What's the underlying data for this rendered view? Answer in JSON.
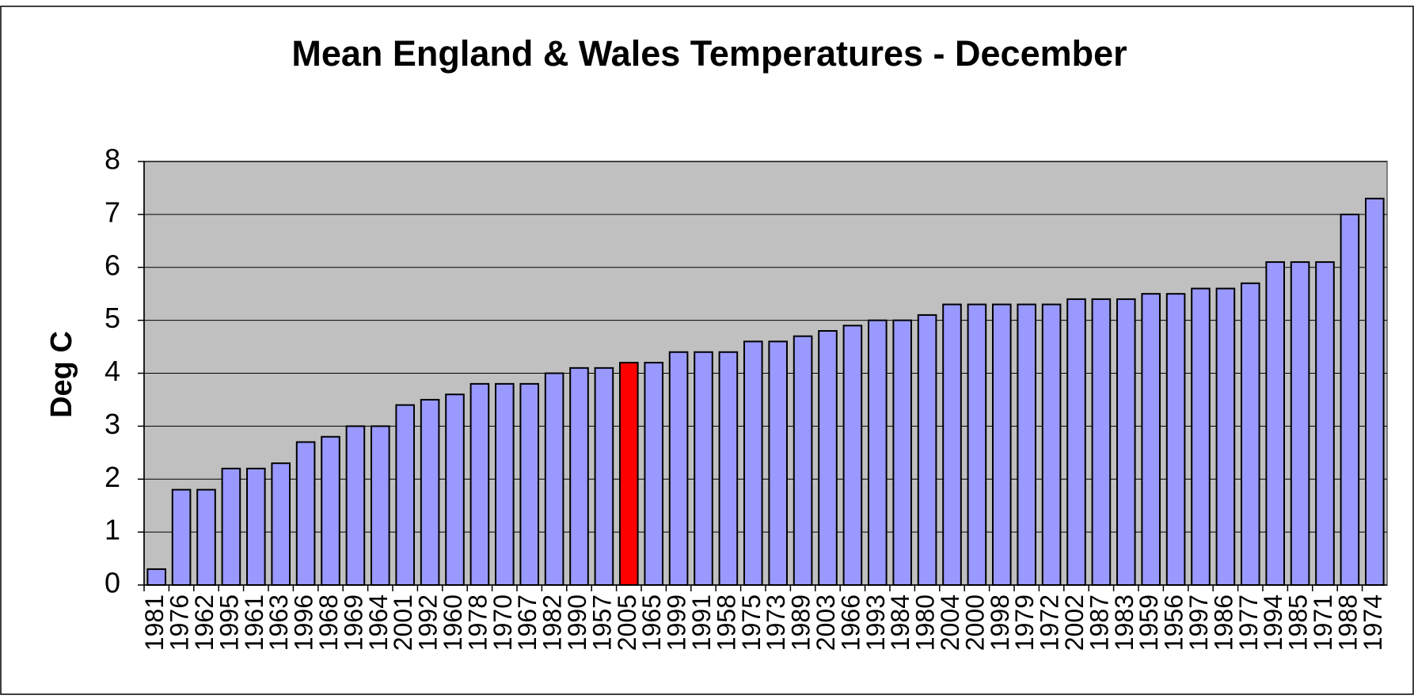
{
  "chart_data": {
    "type": "bar",
    "title": "Mean England & Wales Temperatures - December",
    "y_label": "Deg C",
    "categories": [
      "1981",
      "1976",
      "1962",
      "1995",
      "1961",
      "1963",
      "1996",
      "1968",
      "1969",
      "1964",
      "2001",
      "1992",
      "1960",
      "1978",
      "1970",
      "1967",
      "1982",
      "1990",
      "1957",
      "2005",
      "1965",
      "1999",
      "1991",
      "1958",
      "1975",
      "1973",
      "1989",
      "2003",
      "1966",
      "1993",
      "1984",
      "1980",
      "2004",
      "2000",
      "1998",
      "1979",
      "1972",
      "2002",
      "1987",
      "1983",
      "1959",
      "1956",
      "1997",
      "1986",
      "1977",
      "1994",
      "1985",
      "1971",
      "1988",
      "1974"
    ],
    "values": [
      0.3,
      1.8,
      1.8,
      2.2,
      2.2,
      2.3,
      2.7,
      2.8,
      3.0,
      3.0,
      3.4,
      3.5,
      3.6,
      3.8,
      3.8,
      3.8,
      4.0,
      4.1,
      4.1,
      4.2,
      4.2,
      4.4,
      4.4,
      4.4,
      4.6,
      4.6,
      4.7,
      4.8,
      4.9,
      5.0,
      5.0,
      5.1,
      5.3,
      5.3,
      5.3,
      5.3,
      5.3,
      5.4,
      5.4,
      5.4,
      5.5,
      5.5,
      5.6,
      5.6,
      5.7,
      6.1,
      6.1,
      6.1,
      7.0,
      7.3
    ],
    "colors": [
      "#9999ff",
      "#9999ff",
      "#9999ff",
      "#9999ff",
      "#9999ff",
      "#9999ff",
      "#9999ff",
      "#9999ff",
      "#9999ff",
      "#9999ff",
      "#9999ff",
      "#9999ff",
      "#9999ff",
      "#9999ff",
      "#9999ff",
      "#9999ff",
      "#9999ff",
      "#9999ff",
      "#9999ff",
      "#ff0000",
      "#9999ff",
      "#9999ff",
      "#9999ff",
      "#9999ff",
      "#9999ff",
      "#9999ff",
      "#9999ff",
      "#9999ff",
      "#9999ff",
      "#9999ff",
      "#9999ff",
      "#9999ff",
      "#9999ff",
      "#9999ff",
      "#9999ff",
      "#9999ff",
      "#9999ff",
      "#9999ff",
      "#9999ff",
      "#9999ff",
      "#9999ff",
      "#9999ff",
      "#9999ff",
      "#9999ff",
      "#9999ff",
      "#9999ff",
      "#9999ff",
      "#9999ff",
      "#9999ff",
      "#9999ff"
    ],
    "ylim": [
      0,
      8
    ],
    "yticks": [
      0,
      1,
      2,
      3,
      4,
      5,
      6,
      7,
      8
    ],
    "grid": true,
    "plot_background": "#c0c0c0"
  }
}
